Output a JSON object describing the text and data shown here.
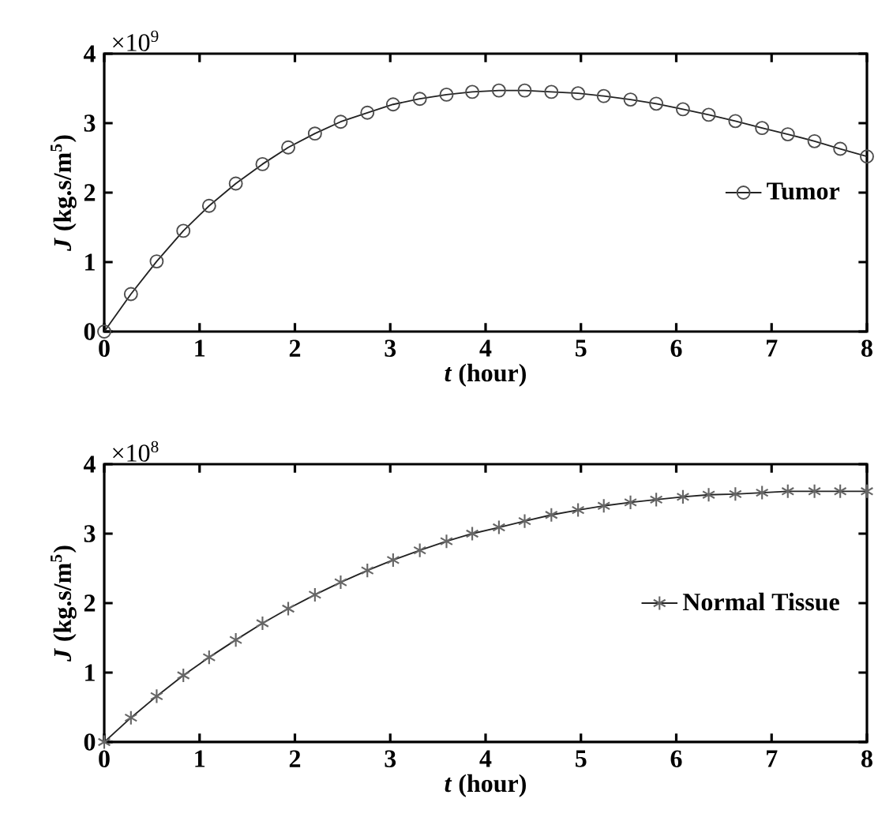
{
  "chart_data": [
    {
      "type": "line",
      "xlabel": "*t* (hour)",
      "ylabel": "*J* (kg.s/m$^{5}$)",
      "annotations": [
        "×10$^{9}$"
      ],
      "x": [
        0,
        0.28,
        0.55,
        0.83,
        1.1,
        1.38,
        1.66,
        1.93,
        2.21,
        2.48,
        2.76,
        3.03,
        3.31,
        3.59,
        3.86,
        4.14,
        4.41,
        4.69,
        4.97,
        5.24,
        5.52,
        5.79,
        6.07,
        6.34,
        6.62,
        6.9,
        7.17,
        7.45,
        7.72,
        8.0
      ],
      "xlim": [
        0,
        8
      ],
      "ylim": [
        0,
        4
      ],
      "xticks": [
        0,
        1,
        2,
        3,
        4,
        5,
        6,
        7,
        8
      ],
      "yticks": [
        0,
        1,
        2,
        3,
        4
      ],
      "marker": "circle",
      "legend": "right",
      "series": [
        {
          "name": "Tumor",
          "color": "#222222",
          "values": [
            0,
            0.54,
            1.01,
            1.45,
            1.81,
            2.13,
            2.41,
            2.65,
            2.85,
            3.02,
            3.15,
            3.27,
            3.35,
            3.41,
            3.45,
            3.47,
            3.47,
            3.45,
            3.43,
            3.39,
            3.34,
            3.28,
            3.2,
            3.12,
            3.03,
            2.93,
            2.84,
            2.74,
            2.63,
            2.52
          ]
        }
      ]
    },
    {
      "type": "line",
      "xlabel": "*t* (hour)",
      "ylabel": "*J* (kg.s/m$^{5}$)",
      "annotations": [
        "×10$^{8}$"
      ],
      "x": [
        0,
        0.28,
        0.55,
        0.83,
        1.1,
        1.38,
        1.66,
        1.93,
        2.21,
        2.48,
        2.76,
        3.03,
        3.31,
        3.59,
        3.86,
        4.14,
        4.41,
        4.69,
        4.97,
        5.24,
        5.52,
        5.79,
        6.07,
        6.34,
        6.62,
        6.9,
        7.17,
        7.45,
        7.72,
        8.0
      ],
      "xlim": [
        0,
        8
      ],
      "ylim": [
        0,
        4
      ],
      "xticks": [
        0,
        1,
        2,
        3,
        4,
        5,
        6,
        7,
        8
      ],
      "yticks": [
        0,
        1,
        2,
        3,
        4
      ],
      "marker": "cross",
      "legend": "right",
      "series": [
        {
          "name": "Normal Tissue",
          "color": "#222222",
          "values": [
            0,
            0.35,
            0.66,
            0.96,
            1.22,
            1.47,
            1.71,
            1.92,
            2.12,
            2.3,
            2.47,
            2.62,
            2.76,
            2.89,
            3.0,
            3.09,
            3.18,
            3.27,
            3.34,
            3.4,
            3.45,
            3.49,
            3.53,
            3.56,
            3.57,
            3.59,
            3.61,
            3.61,
            3.61,
            3.61
          ]
        }
      ]
    }
  ]
}
